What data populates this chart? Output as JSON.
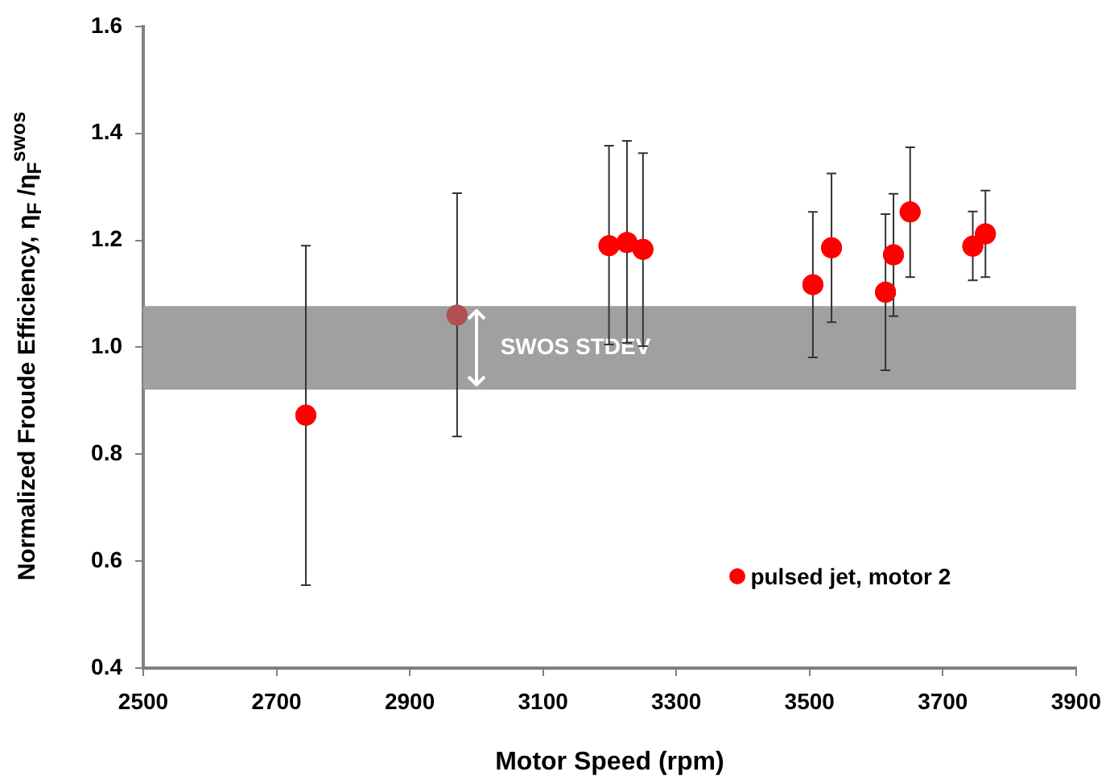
{
  "chart_data": {
    "type": "scatter",
    "xlabel": "Motor Speed (rpm)",
    "ylabel": "Normalized Froude Efficiency, η$_{F}$ /η$_{F}$$^{swos}$",
    "x": [
      2744,
      2971,
      3199,
      3226,
      3250,
      3505,
      3533,
      3614,
      3626,
      3651,
      3745,
      3764
    ],
    "series": [
      {
        "name": "pulsed jet, motor 2",
        "color": "#ff0000",
        "colors": [
          "#ff0000",
          "#b05050",
          "#ff0000",
          "#ff0000",
          "#ff0000",
          "#ff0000",
          "#ff0000",
          "#ff0000",
          "#ff0000",
          "#ff0000",
          "#ff0000",
          "#ff0000"
        ],
        "values": [
          0.873,
          1.06,
          1.19,
          1.196,
          1.183,
          1.117,
          1.186,
          1.103,
          1.173,
          1.253,
          1.189,
          1.212
        ],
        "errors": [
          [
            0.555,
            1.19
          ],
          [
            0.833,
            1.288
          ],
          [
            1.005,
            1.377
          ],
          [
            1.008,
            1.386
          ],
          [
            1.002,
            1.363
          ],
          [
            0.981,
            1.253
          ],
          [
            1.047,
            1.325
          ],
          [
            0.957,
            1.249
          ],
          [
            1.058,
            1.287
          ],
          [
            1.131,
            1.374
          ],
          [
            1.125,
            1.254
          ],
          [
            1.131,
            1.293
          ]
        ]
      }
    ],
    "xlim": [
      2500,
      3900
    ],
    "xticks": [
      2500,
      2700,
      2900,
      3100,
      3300,
      3500,
      3700,
      3900
    ],
    "ylim": [
      0.4,
      1.6
    ],
    "yticks": [
      {
        "value": 0.4,
        "label": "0.4"
      },
      {
        "value": 0.6,
        "label": "0.6"
      },
      {
        "value": 0.8,
        "label": "0.8"
      },
      {
        "value": 1.0,
        "label": "1.0"
      },
      {
        "value": 1.2,
        "label": "1.2"
      },
      {
        "value": 1.4,
        "label": "1.4"
      },
      {
        "value": 1.6,
        "label": "1.6"
      }
    ],
    "bands": [
      {
        "axis": "y",
        "from": 0.921,
        "to": 1.077,
        "label": "SWOS STDEV",
        "color": "#a0a0a0"
      }
    ],
    "marker": "circle",
    "legend": "bottom right",
    "grid": false
  }
}
